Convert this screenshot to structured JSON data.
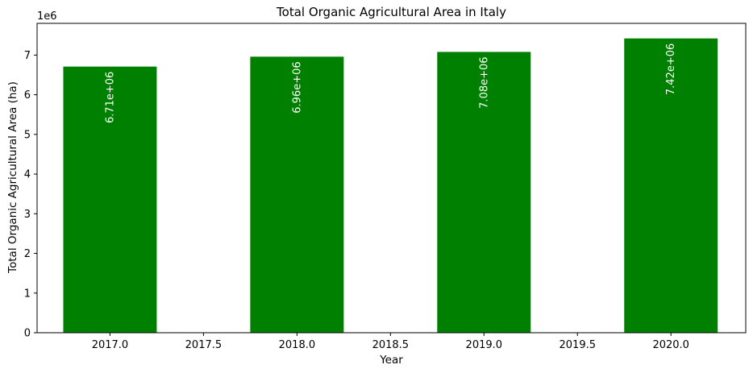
{
  "chart_data": {
    "type": "bar",
    "title": "Total Organic Agricultural Area in Italy",
    "xlabel": "Year",
    "ylabel": "Total Organic Agricultural Area (ha)",
    "y_offset_label": "1e6",
    "categories": [
      2017,
      2018,
      2019,
      2020
    ],
    "values": [
      6710000,
      6960000,
      7080000,
      7420000
    ],
    "data_labels": [
      "6.71e+06",
      "6.96e+06",
      "7.08e+06",
      "7.42e+06"
    ],
    "bar_width": 0.5,
    "bar_color": "#008000",
    "label_color": "#ffffff",
    "xlim": [
      2016.61,
      2020.4
    ],
    "ylim": [
      0,
      7800000
    ],
    "x_ticks": [
      2017.0,
      2017.5,
      2018.0,
      2018.5,
      2019.0,
      2019.5,
      2020.0
    ],
    "x_tick_labels": [
      "2017.0",
      "2017.5",
      "2018.0",
      "2018.5",
      "2019.0",
      "2019.5",
      "2020.0"
    ],
    "y_ticks": [
      0,
      1000000,
      2000000,
      3000000,
      4000000,
      5000000,
      6000000,
      7000000
    ],
    "y_tick_labels": [
      "0",
      "1",
      "2",
      "3",
      "4",
      "5",
      "6",
      "7"
    ],
    "grid": false,
    "legend": "none"
  }
}
